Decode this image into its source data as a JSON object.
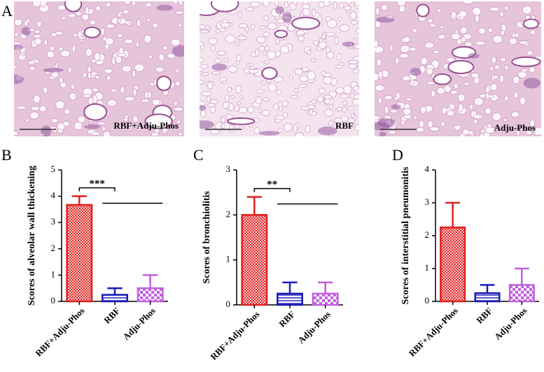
{
  "panel_label": "A",
  "images": [
    {
      "caption": "RBF+Adju-Phos"
    },
    {
      "caption": "RBF"
    },
    {
      "caption": "Adju-Phos"
    }
  ],
  "chart_data": [
    {
      "type": "bar",
      "panel_label": "B",
      "ylabel": "Scores of alveolar wall thickening",
      "categories": [
        "RBF+Adju-Phos",
        "RBF",
        "Adju-Phos"
      ],
      "values": [
        3.67,
        0.25,
        0.5
      ],
      "errors": [
        0.33,
        0.25,
        0.5
      ],
      "colors": [
        "#e02020",
        "#1a1ab8",
        "#c060e0"
      ],
      "ylim": [
        0,
        5
      ],
      "yticks": [
        0,
        1,
        2,
        3,
        4,
        5
      ],
      "significance": "***"
    },
    {
      "type": "bar",
      "panel_label": "C",
      "ylabel": "Scores of bronchiolitis",
      "categories": [
        "RBF+Adju-Phos",
        "RBF",
        "Adju-Phos"
      ],
      "values": [
        2.0,
        0.25,
        0.25
      ],
      "errors": [
        0.4,
        0.25,
        0.25
      ],
      "colors": [
        "#e02020",
        "#1a1ab8",
        "#c060e0"
      ],
      "ylim": [
        0,
        3
      ],
      "yticks": [
        0,
        1,
        2,
        3
      ],
      "significance": "**"
    },
    {
      "type": "bar",
      "panel_label": "D",
      "ylabel": "Scores of interstitial pneumonitis",
      "categories": [
        "RBF+Adju-Phos",
        "RBF",
        "Adju-Phos"
      ],
      "values": [
        2.25,
        0.25,
        0.5
      ],
      "errors": [
        0.75,
        0.25,
        0.5
      ],
      "colors": [
        "#e02020",
        "#1a1ab8",
        "#c060e0"
      ],
      "ylim": [
        0,
        4
      ],
      "yticks": [
        0,
        1,
        2,
        3,
        4
      ]
    }
  ]
}
